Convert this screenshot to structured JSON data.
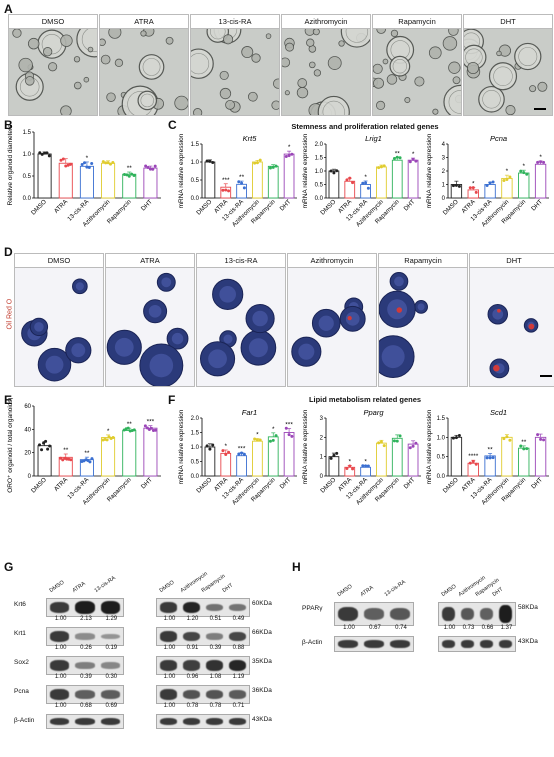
{
  "panels": {
    "A": "A",
    "B": "B",
    "C": "C",
    "D": "D",
    "E": "E",
    "F": "F",
    "G": "G",
    "H": "H"
  },
  "treatments": [
    "DMSO",
    "ATRA",
    "13-cis-RA",
    "Azithromycin",
    "Rapamycin",
    "DHT"
  ],
  "colors": {
    "DMSO": "#222222",
    "ATRA": "#e8474c",
    "13-cis-RA": "#3a6fd1",
    "Azithromycin": "#e0cc2e",
    "Rapamycin": "#2fb35b",
    "DHT": "#9b46b8"
  },
  "oil_red_label": "Oil Red O",
  "sections": {
    "C_title": "Stemness and proliferation related genes",
    "F_title": "Lipid metabolism related genes"
  },
  "chart_data": [
    {
      "id": "B",
      "type": "bar",
      "ylabel": "Relative organoid diameters",
      "ylim": [
        0,
        1.5
      ],
      "yticks": [
        "0.0",
        "0.5",
        "1.0",
        "1.5"
      ],
      "categories": [
        "DMSO",
        "ATRA",
        "13-cis-RA",
        "Azithromycin",
        "Rapamycin",
        "DHT"
      ],
      "values": [
        1.0,
        0.79,
        0.72,
        0.79,
        0.54,
        0.68
      ],
      "sig": [
        "",
        "",
        "*",
        "",
        "**",
        ""
      ]
    },
    {
      "id": "C1",
      "type": "bar",
      "gene": "Krt5",
      "ylabel": "mRNA relative expression",
      "ylim": [
        0,
        1.5
      ],
      "yticks": [
        "0.0",
        "0.5",
        "1.0",
        "1.5"
      ],
      "categories": [
        "DMSO",
        "ATRA",
        "13-cis-RA",
        "Azithromycin",
        "Rapamycin",
        "DHT"
      ],
      "values": [
        1.0,
        0.3,
        0.38,
        1.0,
        0.88,
        1.22
      ],
      "sig": [
        "",
        "***",
        "**",
        "",
        "",
        "*"
      ]
    },
    {
      "id": "C2",
      "type": "bar",
      "gene": "Lrig1",
      "ylabel": "mRNA relative expression",
      "ylim": [
        0,
        2.0
      ],
      "yticks": [
        "0.0",
        "0.5",
        "1.0",
        "1.5",
        "2.0"
      ],
      "categories": [
        "DMSO",
        "ATRA",
        "13-cis-RA",
        "Azithromycin",
        "Rapamycin",
        "DHT"
      ],
      "values": [
        1.0,
        0.62,
        0.5,
        1.15,
        1.4,
        1.4
      ],
      "sig": [
        "",
        "",
        "*",
        "",
        "**",
        "*"
      ]
    },
    {
      "id": "C3",
      "type": "bar",
      "gene": "Pcna",
      "ylabel": "mRNA relative expression",
      "ylim": [
        0,
        4
      ],
      "yticks": [
        "0",
        "1",
        "2",
        "3",
        "4"
      ],
      "categories": [
        "DMSO",
        "ATRA",
        "13-cis-RA",
        "Azithromycin",
        "Rapamycin",
        "DHT"
      ],
      "values": [
        1.0,
        0.6,
        1.0,
        1.45,
        1.85,
        2.5
      ],
      "sig": [
        "",
        "*",
        "",
        "*",
        "*",
        "*"
      ]
    },
    {
      "id": "E",
      "type": "bar",
      "ylabel": "ORO⁺ organoid / total organoids(%)",
      "ylim": [
        0,
        60
      ],
      "yticks": [
        "0",
        "20",
        "40",
        "60"
      ],
      "categories": [
        "DMSO",
        "ATRA",
        "13-cis-RA",
        "Azithromycin",
        "Rapamycin",
        "DHT"
      ],
      "values": [
        26,
        16,
        14,
        33,
        39,
        41
      ],
      "sig": [
        "",
        "**",
        "**",
        "*",
        "**",
        "***"
      ]
    },
    {
      "id": "F1",
      "type": "bar",
      "gene": "Far1",
      "ylabel": "mRNA relative expression",
      "ylim": [
        0,
        2.0
      ],
      "yticks": [
        "0.0",
        "0.5",
        "1.0",
        "1.5",
        "2.0"
      ],
      "categories": [
        "DMSO",
        "ATRA",
        "13-cis-RA",
        "Azithromycin",
        "Rapamycin",
        "DHT"
      ],
      "values": [
        1.0,
        0.78,
        0.7,
        1.2,
        1.35,
        1.5
      ],
      "sig": [
        "",
        "*",
        "***",
        "*",
        "*",
        "***"
      ]
    },
    {
      "id": "F2",
      "type": "bar",
      "gene": "Pparg",
      "ylabel": "mRNA relative expression",
      "ylim": [
        0,
        3
      ],
      "yticks": [
        "0",
        "1",
        "2",
        "3"
      ],
      "categories": [
        "DMSO",
        "ATRA",
        "13-cis-RA",
        "Azithromycin",
        "Rapamycin",
        "DHT"
      ],
      "values": [
        1.0,
        0.45,
        0.45,
        1.7,
        1.95,
        1.65
      ],
      "sig": [
        "",
        "*",
        "*",
        "",
        "",
        ""
      ]
    },
    {
      "id": "F3",
      "type": "bar",
      "gene": "Scd1",
      "ylabel": "mRNA relative expression",
      "ylim": [
        0,
        1.5
      ],
      "yticks": [
        "0.0",
        "0.5",
        "1.0",
        "1.5"
      ],
      "categories": [
        "DMSO",
        "ATRA",
        "13-cis-RA",
        "Azithromycin",
        "Rapamycin",
        "DHT"
      ],
      "values": [
        1.0,
        0.33,
        0.52,
        1.0,
        0.72,
        1.0
      ],
      "sig": [
        "",
        "****",
        "**",
        "",
        "**",
        ""
      ]
    }
  ],
  "westerns": {
    "G_left": {
      "lanes": [
        "DMSO",
        "ATRA",
        "13-cis-RA"
      ],
      "proteins": [
        "Krt6",
        "Krt1",
        "Sox2",
        "Pcna",
        "β-Actin"
      ],
      "quant": [
        [
          "1.00",
          "2.13",
          "1.29"
        ],
        [
          "1.00",
          "0.26",
          "0.19"
        ],
        [
          "1.00",
          "0.39",
          "0.30"
        ],
        [
          "1.00",
          "0.68",
          "0.69"
        ]
      ]
    },
    "G_right": {
      "lanes": [
        "DMSO",
        "Azithromycin",
        "Rapamycin",
        "DHT"
      ],
      "quant": [
        [
          "1.00",
          "1.20",
          "0.51",
          "0.49"
        ],
        [
          "1.00",
          "0.91",
          "0.39",
          "0.88"
        ],
        [
          "1.00",
          "0.96",
          "1.08",
          "1.19"
        ],
        [
          "1.00",
          "0.78",
          "0.78",
          "0.71"
        ]
      ],
      "kda": [
        "60KDa",
        "66KDa",
        "35KDa",
        "36KDa",
        "43KDa"
      ]
    },
    "H_left": {
      "lanes": [
        "DMSO",
        "ATRA",
        "13-cis-RA"
      ],
      "proteins": [
        "PPARγ",
        "β-Actin"
      ],
      "quant": [
        "1.00",
        "0.67",
        "0.74"
      ]
    },
    "H_right": {
      "lanes": [
        "DMSO",
        "Azithromycin",
        "Rapamycin",
        "DHT"
      ],
      "quant": [
        "1.00",
        "0.73",
        "0.66",
        "1.37"
      ],
      "kda": [
        "58KDa",
        "43KDa"
      ]
    }
  }
}
